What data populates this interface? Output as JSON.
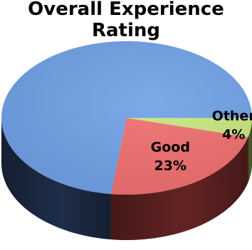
{
  "chart_data": {
    "type": "pie",
    "title_lines": [
      "Overall Experience",
      "Rating"
    ],
    "slices": [
      {
        "label": "",
        "value": 73,
        "value_label": "",
        "color": "#6fa0e6",
        "side_color": "#1f2f4c"
      },
      {
        "label": "Good",
        "value": 23,
        "value_label": "23%",
        "color": "#ef6d6d",
        "side_color": "#6a2525"
      },
      {
        "label": "Other",
        "value": 4,
        "value_label": "4%",
        "color": "#c7e57f",
        "side_color": "#55652f"
      }
    ],
    "start_angle_deg": 0,
    "direction": "counterclockwise",
    "style": "3d"
  }
}
